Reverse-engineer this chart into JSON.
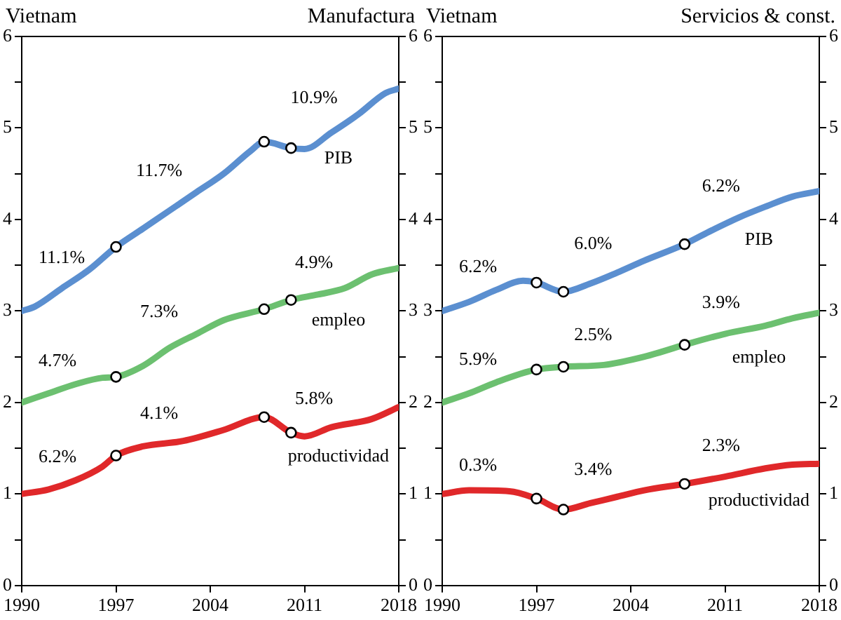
{
  "chart_data": [
    {
      "type": "line",
      "title": "Vietnam",
      "subtitle": "Manufactura",
      "marker": "none",
      "legend": false,
      "grid": false,
      "xlim": [
        1990,
        2018
      ],
      "xticks": [
        1990,
        1997,
        2004,
        2011,
        2018
      ],
      "ylim": [
        0,
        6
      ],
      "yticks": [
        0,
        {
          "value": 0.5,
          "label": null
        },
        1,
        {
          "value": 1.5,
          "label": null
        },
        2,
        {
          "value": 2.5,
          "label": null
        },
        3,
        {
          "value": 3.5,
          "label": null
        },
        4,
        {
          "value": 4.5,
          "label": null
        },
        5,
        {
          "value": 5.5,
          "label": null
        },
        6
      ],
      "y2lim": [
        0,
        6
      ],
      "y2ticks": [
        0,
        {
          "value": 0.5,
          "label": null
        },
        1,
        {
          "value": 1.5,
          "label": null
        },
        2,
        {
          "value": 2.5,
          "label": null
        },
        3,
        {
          "value": 3.5,
          "label": null
        },
        4,
        {
          "value": 4.5,
          "label": null
        },
        5,
        {
          "value": 5.5,
          "label": null
        },
        6
      ],
      "series": [
        {
          "name": "PIB",
          "color": "#5b8fd0",
          "x": [
            1990,
            1991,
            1993,
            1995,
            1997,
            1999,
            2001,
            2003,
            2005,
            2007,
            2008,
            2010,
            2011,
            2013,
            2015,
            2017,
            2018
          ],
          "values": [
            3.0,
            3.05,
            3.25,
            3.45,
            3.7,
            3.9,
            4.1,
            4.3,
            4.5,
            4.75,
            4.85,
            4.78,
            4.77,
            4.95,
            5.15,
            5.38,
            5.43
          ]
        },
        {
          "name": "empleo",
          "color": "#6cc070",
          "x": [
            1990,
            1992,
            1994,
            1996,
            1997,
            1999,
            2001,
            2003,
            2005,
            2008,
            2010,
            2012,
            2014,
            2016,
            2018
          ],
          "values": [
            2.0,
            2.1,
            2.2,
            2.27,
            2.28,
            2.4,
            2.6,
            2.75,
            2.9,
            3.02,
            3.12,
            3.18,
            3.25,
            3.4,
            3.47
          ]
        },
        {
          "name": "productividad",
          "color": "#e0282a",
          "x": [
            1990,
            1992,
            1994,
            1996,
            1997,
            1999,
            2002,
            2005,
            2008,
            2010,
            2011,
            2013,
            2016,
            2018
          ],
          "values": [
            1.0,
            1.05,
            1.15,
            1.3,
            1.42,
            1.52,
            1.58,
            1.7,
            1.84,
            1.67,
            1.63,
            1.73,
            1.82,
            1.95
          ]
        },
        {
          "type": "scatter",
          "marker": "circle",
          "color": "#ffffff",
          "x": [
            1997,
            2008,
            2010,
            1997,
            2008,
            2010,
            1997,
            2008,
            2010
          ],
          "values": [
            3.7,
            4.85,
            4.78,
            2.28,
            3.02,
            3.12,
            1.42,
            1.84,
            1.67
          ]
        }
      ],
      "annotations": [
        "11.1%",
        "11.7%",
        "10.9%",
        "4.7%",
        "7.3%",
        "4.9%",
        "6.2%",
        "4.1%",
        "5.8%"
      ]
    },
    {
      "type": "line",
      "title": "Vietnam",
      "subtitle": "Servicios & const.",
      "marker": "none",
      "legend": false,
      "grid": false,
      "xlim": [
        1990,
        2018
      ],
      "xticks": [
        1990,
        1997,
        2004,
        2011,
        2018
      ],
      "ylim": [
        0,
        6
      ],
      "yticks": [
        0,
        {
          "value": 0.5,
          "label": null
        },
        1,
        {
          "value": 1.5,
          "label": null
        },
        2,
        {
          "value": 2.5,
          "label": null
        },
        3,
        {
          "value": 3.5,
          "label": null
        },
        4,
        {
          "value": 4.5,
          "label": null
        },
        5,
        {
          "value": 5.5,
          "label": null
        },
        6
      ],
      "y2lim": [
        0,
        6
      ],
      "y2ticks": [
        0,
        {
          "value": 0.5,
          "label": null
        },
        1,
        {
          "value": 1.5,
          "label": null
        },
        2,
        {
          "value": 2.5,
          "label": null
        },
        3,
        {
          "value": 3.5,
          "label": null
        },
        4,
        {
          "value": 4.5,
          "label": null
        },
        5,
        {
          "value": 5.5,
          "label": null
        },
        6
      ],
      "series": [
        {
          "name": "PIB",
          "color": "#5b8fd0",
          "x": [
            1990,
            1992,
            1994,
            1996,
            1997,
            1999,
            2001,
            2003,
            2005,
            2008,
            2010,
            2012,
            2014,
            2016,
            2018
          ],
          "values": [
            3.0,
            3.1,
            3.23,
            3.33,
            3.31,
            3.21,
            3.3,
            3.42,
            3.55,
            3.73,
            3.88,
            4.02,
            4.14,
            4.25,
            4.31
          ]
        },
        {
          "name": "empleo",
          "color": "#6cc070",
          "x": [
            1990,
            1992,
            1994,
            1997,
            1999,
            2002,
            2005,
            2008,
            2011,
            2014,
            2016,
            2018
          ],
          "values": [
            2.0,
            2.1,
            2.22,
            2.36,
            2.39,
            2.41,
            2.5,
            2.63,
            2.75,
            2.84,
            2.92,
            2.98
          ]
        },
        {
          "name": "productividad",
          "color": "#e0282a",
          "x": [
            1990,
            1992,
            1995,
            1997,
            1999,
            2001,
            2003,
            2005,
            2008,
            2011,
            2014,
            2016,
            2018
          ],
          "values": [
            1.0,
            1.04,
            1.03,
            0.95,
            0.83,
            0.9,
            0.97,
            1.04,
            1.11,
            1.19,
            1.28,
            1.32,
            1.33
          ]
        },
        {
          "type": "scatter",
          "marker": "circle",
          "color": "#ffffff",
          "x": [
            1997,
            1999,
            2008,
            1997,
            1999,
            2008,
            1997,
            1999,
            2008
          ],
          "values": [
            3.31,
            3.21,
            3.73,
            2.36,
            2.39,
            2.63,
            0.95,
            0.83,
            1.11
          ]
        }
      ],
      "annotations": [
        "6.2%",
        "6.0%",
        "6.2%",
        "5.9%",
        "2.5%",
        "3.9%",
        "0.3%",
        "3.4%",
        "2.3%"
      ]
    }
  ]
}
